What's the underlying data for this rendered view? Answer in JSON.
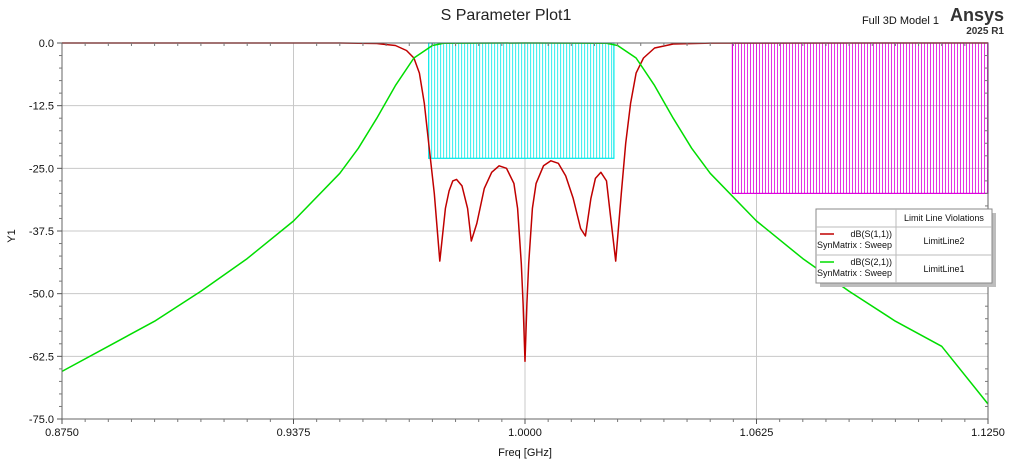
{
  "header": {
    "title": "S Parameter Plot1",
    "model": "Full 3D Model 1",
    "brand": "Ansys",
    "version": "2025 R1"
  },
  "chart_data": {
    "type": "line",
    "title": "S Parameter Plot1",
    "xlabel": "Freq [GHz]",
    "ylabel": "Y1",
    "xlim": [
      0.875,
      1.125
    ],
    "ylim": [
      -75,
      0
    ],
    "x_ticks": [
      "0.8750",
      "0.9375",
      "1.0000",
      "1.0625",
      "1.1250"
    ],
    "y_ticks": [
      "0.0",
      "-12.5",
      "-25.0",
      "-37.5",
      "-50.0",
      "-62.5",
      "-75.0"
    ],
    "grid": true,
    "legend_placement": "right",
    "series": [
      {
        "name": "dB(S(1,1))",
        "setup": "SynMatrix : Sweep",
        "violation": "LimitLine2",
        "color": "#c00000",
        "x": [
          0.875,
          0.95,
          0.96,
          0.965,
          0.968,
          0.97,
          0.9715,
          0.9728,
          0.974,
          0.9755,
          0.977,
          0.9785,
          0.9795,
          0.9805,
          0.9815,
          0.983,
          0.9845,
          0.9855,
          0.987,
          0.989,
          0.991,
          0.993,
          0.995,
          0.997,
          0.998,
          0.999,
          0.9995,
          1.0,
          1.0005,
          1.001,
          1.002,
          1.003,
          1.005,
          1.007,
          1.009,
          1.011,
          1.013,
          1.015,
          1.0163,
          1.0178,
          1.019,
          1.0205,
          1.022,
          1.023,
          1.0245,
          1.026,
          1.0272,
          1.0285,
          1.03,
          1.032,
          1.035,
          1.04,
          1.05,
          1.125
        ],
        "y": [
          0,
          0,
          -0.1,
          -0.5,
          -1.5,
          -3,
          -6,
          -12,
          -20,
          -30,
          -43.5,
          -33,
          -29.5,
          -27.5,
          -27.2,
          -28.5,
          -33,
          -39.5,
          -36,
          -29,
          -25.8,
          -24.5,
          -25,
          -28,
          -33,
          -44,
          -52,
          -63.5,
          -52,
          -44,
          -33,
          -28,
          -24.5,
          -23.5,
          -24,
          -26.5,
          -31,
          -37,
          -38.5,
          -31,
          -27,
          -25.8,
          -27.5,
          -34,
          -43.5,
          -30,
          -20,
          -12,
          -6,
          -3,
          -1,
          -0.2,
          -0.02,
          0
        ]
      },
      {
        "name": "dB(S(2,1))",
        "setup": "SynMatrix : Sweep",
        "violation": "LimitLine1",
        "color": "#00dd00",
        "x": [
          0.875,
          0.8875,
          0.9,
          0.9125,
          0.925,
          0.9375,
          0.95,
          0.955,
          0.96,
          0.965,
          0.97,
          0.975,
          0.978,
          1.0,
          1.022,
          1.025,
          1.03,
          1.035,
          1.04,
          1.045,
          1.05,
          1.0625,
          1.075,
          1.0875,
          1.1,
          1.1125,
          1.125
        ],
        "y": [
          -65.5,
          -60.5,
          -55.5,
          -49.5,
          -43,
          -35.5,
          -26,
          -21,
          -15,
          -8.5,
          -3,
          -0.5,
          -0.05,
          0,
          -0.05,
          -0.5,
          -3,
          -8.5,
          -15,
          -21,
          -26,
          -35.5,
          -43,
          -49.5,
          -55.5,
          -60.5,
          -72
        ]
      }
    ],
    "limit_lines": [
      {
        "x": [
          0.974,
          1.024
        ],
        "y": [
          -23,
          0
        ],
        "color": "#00e8e8"
      },
      {
        "x": [
          1.056,
          1.125
        ],
        "y": [
          -30,
          0
        ],
        "color": "#dd00dd"
      }
    ]
  },
  "legend": {
    "header": "Limit Line Violations"
  }
}
